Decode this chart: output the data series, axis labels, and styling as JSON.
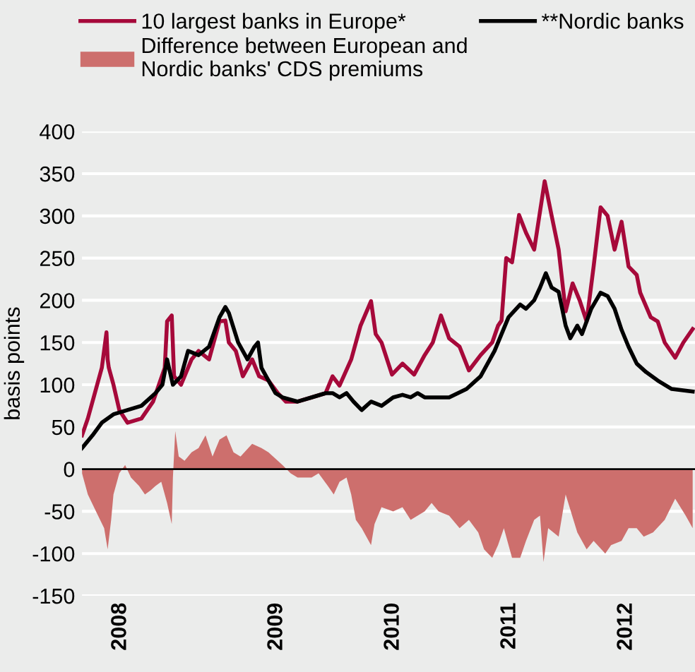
{
  "chart_data": {
    "type": "line",
    "ylabel": "basis points",
    "xlim": [
      2007.83,
      2013.09
    ],
    "xticks": [
      {
        "value": 2008.16,
        "label": "2008"
      },
      {
        "value": 2009.5,
        "label": "2009"
      },
      {
        "value": 2010.5,
        "label": "2010"
      },
      {
        "value": 2011.5,
        "label": "2011"
      },
      {
        "value": 2012.5,
        "label": "2012"
      }
    ],
    "ylim": [
      -150,
      400
    ],
    "yticks": [
      -150,
      -100,
      -50,
      0,
      50,
      100,
      150,
      200,
      250,
      300,
      350,
      400
    ],
    "grid": "y",
    "legend": "top",
    "marker": "none",
    "line_style": "solid",
    "ref_lines": [
      {
        "axis": "y",
        "value": 0,
        "color": "#000000"
      }
    ],
    "series": [
      {
        "name": "10 largest banks in Europe*",
        "color": "#a6093a",
        "x": [
          2007.83,
          2007.88,
          2007.94,
          2008.0,
          2008.04,
          2008.05,
          2008.06,
          2008.1,
          2008.15,
          2008.22,
          2008.34,
          2008.44,
          2008.49,
          2008.54,
          2008.56,
          2008.6,
          2008.62,
          2008.68,
          2008.77,
          2008.83,
          2008.92,
          2009.01,
          2009.06,
          2009.09,
          2009.15,
          2009.21,
          2009.29,
          2009.35,
          2009.43,
          2009.51,
          2009.58,
          2009.68,
          2009.8,
          2009.92,
          2009.98,
          2010.04,
          2010.14,
          2010.22,
          2010.31,
          2010.35,
          2010.4,
          2010.49,
          2010.58,
          2010.68,
          2010.77,
          2010.84,
          2010.91,
          2010.98,
          2011.07,
          2011.15,
          2011.25,
          2011.35,
          2011.4,
          2011.43,
          2011.47,
          2011.52,
          2011.58,
          2011.64,
          2011.71,
          2011.8,
          2011.86,
          2011.92,
          2011.98,
          2012.04,
          2012.1,
          2012.16,
          2012.22,
          2012.28,
          2012.34,
          2012.4,
          2012.46,
          2012.52,
          2012.59,
          2012.62,
          2012.71,
          2012.77,
          2012.83,
          2012.92,
          2012.99,
          2013.07
        ],
        "values": [
          40,
          60,
          90,
          120,
          162,
          130,
          120,
          100,
          70,
          55,
          60,
          80,
          100,
          120,
          175,
          182,
          110,
          100,
          130,
          140,
          130,
          175,
          176,
          150,
          140,
          110,
          130,
          110,
          105,
          90,
          80,
          80,
          85,
          90,
          110,
          99,
          130,
          170,
          199,
          160,
          150,
          112,
          125,
          112,
          135,
          150,
          182,
          155,
          145,
          117,
          135,
          150,
          170,
          176,
          250,
          245,
          301,
          280,
          260,
          341,
          300,
          260,
          187,
          220,
          200,
          175,
          240,
          310,
          300,
          260,
          293,
          240,
          230,
          209,
          180,
          175,
          150,
          132,
          150,
          166
        ]
      },
      {
        "name": "Difference between European and\nNordic banks' CDS premiums",
        "type": "area",
        "color": "#cd6f6d",
        "x": [
          2007.83,
          2007.88,
          2007.95,
          2008.02,
          2008.05,
          2008.08,
          2008.1,
          2008.15,
          2008.2,
          2008.25,
          2008.32,
          2008.37,
          2008.42,
          2008.46,
          2008.51,
          2008.56,
          2008.6,
          2008.61,
          2008.63,
          2008.66,
          2008.71,
          2008.77,
          2008.83,
          2008.89,
          2008.95,
          2009.01,
          2009.07,
          2009.13,
          2009.19,
          2009.29,
          2009.37,
          2009.43,
          2009.51,
          2009.55,
          2009.62,
          2009.68,
          2009.8,
          2009.86,
          2009.94,
          2009.99,
          2010.04,
          2010.1,
          2010.14,
          2010.18,
          2010.23,
          2010.31,
          2010.34,
          2010.4,
          2010.5,
          2010.58,
          2010.65,
          2010.71,
          2010.77,
          2010.83,
          2010.89,
          2010.98,
          2011.07,
          2011.15,
          2011.23,
          2011.28,
          2011.35,
          2011.4,
          2011.45,
          2011.52,
          2011.59,
          2011.64,
          2011.71,
          2011.76,
          2011.79,
          2011.83,
          2011.92,
          2011.98,
          2012.08,
          2012.16,
          2012.22,
          2012.32,
          2012.37,
          2012.46,
          2012.52,
          2012.59,
          2012.65,
          2012.73,
          2012.83,
          2012.92,
          2013.01,
          2013.07
        ],
        "values": [
          -5,
          -30,
          -50,
          -70,
          -95,
          -60,
          -30,
          -5,
          5,
          -10,
          -20,
          -30,
          -25,
          -20,
          -15,
          -40,
          -65,
          -10,
          45,
          15,
          10,
          20,
          25,
          40,
          15,
          35,
          40,
          20,
          15,
          30,
          25,
          20,
          10,
          5,
          -5,
          -10,
          -10,
          -5,
          -20,
          -30,
          -15,
          -10,
          -30,
          -60,
          -70,
          -90,
          -65,
          -45,
          -50,
          -45,
          -60,
          -55,
          -50,
          -40,
          -50,
          -55,
          -70,
          -60,
          -75,
          -95,
          -105,
          -90,
          -70,
          -105,
          -105,
          -85,
          -60,
          -55,
          -110,
          -70,
          -80,
          -30,
          -75,
          -95,
          -85,
          -100,
          -90,
          -85,
          -70,
          -70,
          -80,
          -75,
          -60,
          -35,
          -55,
          -70
        ]
      },
      {
        "name": "**Nordic banks",
        "color": "#000000",
        "x": [
          2007.83,
          2007.92,
          2008.0,
          2008.1,
          2008.22,
          2008.34,
          2008.46,
          2008.52,
          2008.56,
          2008.61,
          2008.68,
          2008.74,
          2008.83,
          2008.92,
          2009.01,
          2009.06,
          2009.09,
          2009.17,
          2009.25,
          2009.31,
          2009.34,
          2009.37,
          2009.43,
          2009.49,
          2009.55,
          2009.68,
          2009.8,
          2009.92,
          2009.98,
          2010.04,
          2010.1,
          2010.16,
          2010.23,
          2010.31,
          2010.4,
          2010.5,
          2010.58,
          2010.65,
          2010.71,
          2010.77,
          2010.89,
          2010.98,
          2011.13,
          2011.25,
          2011.37,
          2011.49,
          2011.59,
          2011.64,
          2011.71,
          2011.76,
          2011.81,
          2011.86,
          2011.92,
          2011.98,
          2012.02,
          2012.08,
          2012.12,
          2012.2,
          2012.28,
          2012.34,
          2012.4,
          2012.46,
          2012.52,
          2012.59,
          2012.67,
          2012.77,
          2012.89,
          2013.07
        ],
        "values": [
          25,
          40,
          55,
          65,
          70,
          75,
          90,
          100,
          130,
          100,
          110,
          140,
          135,
          145,
          180,
          192,
          185,
          150,
          130,
          145,
          150,
          120,
          105,
          90,
          85,
          80,
          85,
          90,
          90,
          85,
          90,
          80,
          70,
          80,
          75,
          85,
          88,
          85,
          90,
          85,
          85,
          85,
          95,
          110,
          140,
          180,
          195,
          190,
          200,
          215,
          232,
          215,
          210,
          170,
          155,
          170,
          160,
          190,
          209,
          205,
          190,
          165,
          145,
          125,
          115,
          105,
          95,
          92
        ]
      }
    ]
  }
}
